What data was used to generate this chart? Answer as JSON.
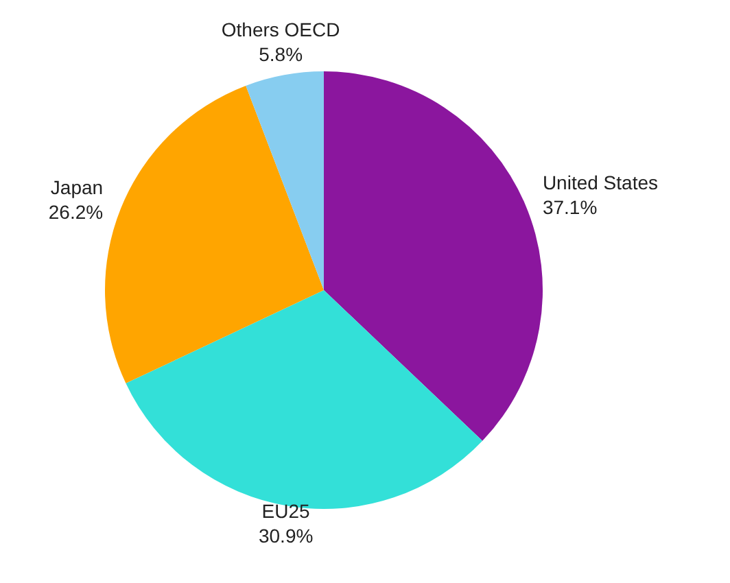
{
  "chart_data": {
    "type": "pie",
    "categories": [
      "United States",
      "EU25",
      "Japan",
      "Others OECD"
    ],
    "values": [
      37.1,
      30.9,
      26.2,
      5.8
    ],
    "colors": [
      "#8b169e",
      "#33e0d8",
      "#ffa500",
      "#87cdf0"
    ],
    "value_labels": [
      "37.1%",
      "30.9%",
      "26.2%",
      "5.8%"
    ]
  }
}
